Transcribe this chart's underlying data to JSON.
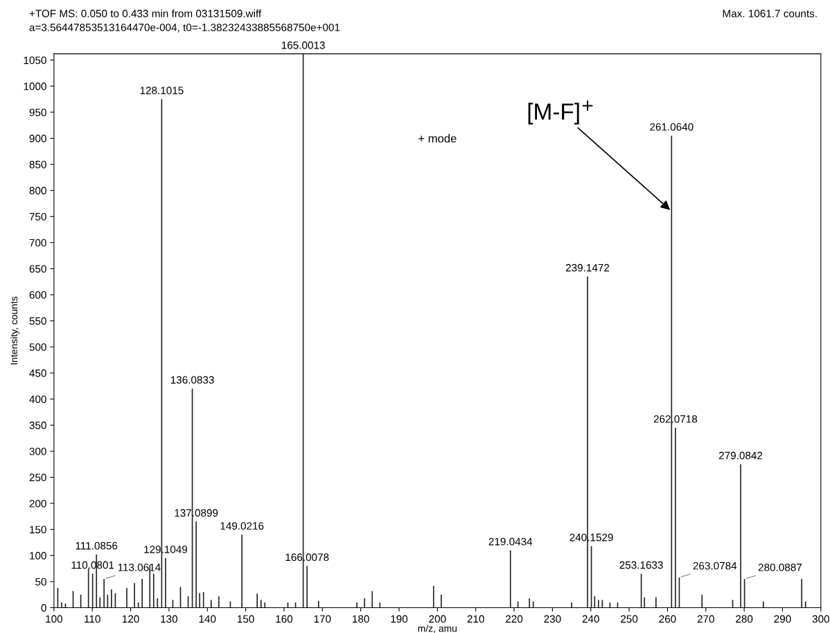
{
  "chart_data": {
    "type": "bar",
    "title": "+TOF MS: 0.050 to 0.433 min from 03131509.wiff",
    "subtitle": "a=3.56447853513164470e-004, t0=-1.38232433885568750e+001",
    "xlabel": "m/z, amu",
    "ylabel": "Intensity, counts",
    "series": [
      {
        "color": "#222222",
        "x": [
          101,
          102,
          103,
          105,
          107,
          109,
          110.0801,
          111.0856,
          112,
          113.0614,
          114,
          115,
          116,
          119,
          121,
          122,
          123,
          125,
          126,
          127,
          128.1015,
          129.1049,
          131,
          133,
          135,
          136.0833,
          137.0899,
          138,
          139,
          141,
          143,
          146,
          149.0216,
          153,
          154,
          155,
          161,
          163,
          165.0013,
          166.0078,
          169,
          179,
          181,
          183,
          185,
          199,
          201,
          219.0434,
          221,
          224,
          225,
          235,
          239.1472,
          240.1529,
          241,
          242,
          243,
          245,
          247,
          253.1633,
          254,
          257,
          261.064,
          262.0718,
          263.0784,
          269,
          277,
          279.0842,
          280.0887,
          285,
          295,
          296
        ],
        "values": [
          38,
          10,
          8,
          32,
          25,
          75,
          65,
          102,
          20,
          55,
          25,
          35,
          28,
          38,
          47,
          10,
          55,
          82,
          65,
          18,
          975,
          95,
          15,
          40,
          22,
          420,
          165,
          28,
          30,
          15,
          22,
          12,
          140,
          27,
          15,
          10,
          10,
          10,
          1061.7,
          80,
          13,
          10,
          18,
          32,
          10,
          42,
          25,
          110,
          12,
          18,
          12,
          10,
          635,
          118,
          22,
          15,
          15,
          10,
          10,
          65,
          20,
          20,
          905,
          345,
          58,
          25,
          15,
          275,
          55,
          12,
          55,
          12
        ]
      }
    ],
    "xlim": [
      100,
      300
    ],
    "xticks": [
      100,
      110,
      120,
      130,
      140,
      150,
      160,
      170,
      180,
      190,
      200,
      210,
      220,
      230,
      240,
      250,
      260,
      270,
      280,
      290,
      300
    ],
    "ylim": [
      0,
      1062
    ],
    "yticks": [
      0,
      50,
      100,
      150,
      200,
      250,
      300,
      350,
      400,
      450,
      500,
      550,
      600,
      650,
      700,
      750,
      800,
      850,
      900,
      950,
      1000,
      1050
    ],
    "grid": false,
    "legend": false,
    "annotations": [
      {
        "text": "110.0801",
        "x": 110.0801,
        "y": 65
      },
      {
        "text": "111.0856",
        "x": 111.0856,
        "y": 102
      },
      {
        "text": "113.0614",
        "x": 113.0614,
        "y": 55
      },
      {
        "text": "128.1015",
        "x": 128.1015,
        "y": 975
      },
      {
        "text": "129.1049",
        "x": 129.1049,
        "y": 95
      },
      {
        "text": "136.0833",
        "x": 136.0833,
        "y": 420
      },
      {
        "text": "137.0899",
        "x": 137.0899,
        "y": 165
      },
      {
        "text": "149.0216",
        "x": 149.0216,
        "y": 140
      },
      {
        "text": "165.0013",
        "x": 165.0013,
        "y": 1061.7
      },
      {
        "text": "166.0078",
        "x": 166.0078,
        "y": 80
      },
      {
        "text": "219.0434",
        "x": 219.0434,
        "y": 110
      },
      {
        "text": "239.1472",
        "x": 239.1472,
        "y": 635
      },
      {
        "text": "240.1529",
        "x": 240.1529,
        "y": 118
      },
      {
        "text": "253.1633",
        "x": 253.1633,
        "y": 65
      },
      {
        "text": "261.0640",
        "x": 261.064,
        "y": 905
      },
      {
        "text": "262.0718",
        "x": 262.0718,
        "y": 345
      },
      {
        "text": "263.0784",
        "x": 263.0784,
        "y": 58
      },
      {
        "text": "279.0842",
        "x": 279.0842,
        "y": 275
      },
      {
        "text": "280.0887",
        "x": 280.0887,
        "y": 55
      },
      {
        "text": "[M-F]$^{+}$",
        "x": 261.064,
        "y": 760
      },
      "+ mode",
      "Max. 1061.7 counts."
    ]
  }
}
